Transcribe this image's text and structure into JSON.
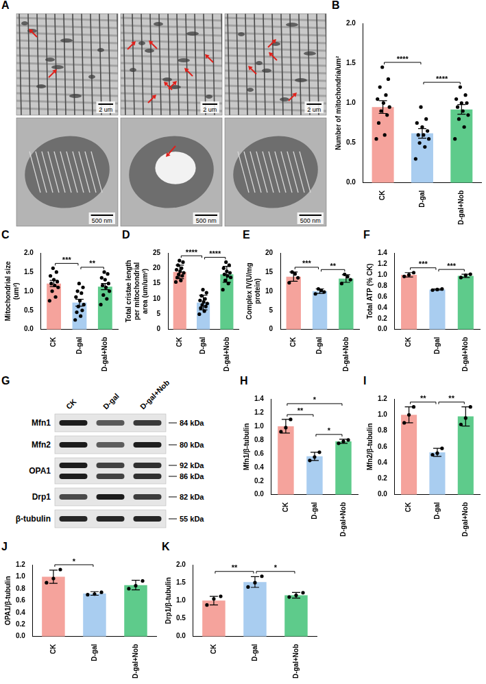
{
  "micrographs": {
    "panel": "A",
    "images": [
      {
        "scale_bar": "2 um"
      },
      {
        "scale_bar": "2 um"
      },
      {
        "scale_bar": "2 um"
      },
      {
        "scale_bar": "500 nm"
      },
      {
        "scale_bar": "500 nm"
      },
      {
        "scale_bar": "500 nm"
      }
    ]
  },
  "western_blot": {
    "panel": "G",
    "lanes": [
      "CK",
      "D-gal",
      "D-gal+Nob"
    ],
    "rows": [
      {
        "protein": "Mfn1",
        "sizes": [
          "84 kDa"
        ]
      },
      {
        "protein": "Mfn2",
        "sizes": [
          "80 kDa"
        ]
      },
      {
        "protein": "OPA1",
        "sizes": [
          "92 kDa",
          "86 kDa"
        ]
      },
      {
        "protein": "Drp1",
        "sizes": [
          "82 kDa"
        ]
      },
      {
        "protein": "β-tubulin",
        "sizes": [
          "55 kDa"
        ]
      }
    ]
  },
  "chart_data": [
    {
      "panel": "B",
      "type": "bar",
      "y_label": "Number of mitochondria/um²",
      "categories": [
        "CK",
        "D-gal",
        "D-gal+Nob"
      ],
      "values": [
        0.95,
        0.62,
        0.92
      ],
      "errors": [
        0.08,
        0.06,
        0.06
      ],
      "points": [
        [
          0.55,
          0.6,
          0.75,
          0.85,
          0.9,
          0.95,
          1.0,
          1.05,
          1.1,
          1.2,
          1.3,
          1.45
        ],
        [
          0.3,
          0.45,
          0.5,
          0.55,
          0.6,
          0.6,
          0.65,
          0.7,
          0.75,
          0.8,
          0.95
        ],
        [
          0.55,
          0.7,
          0.8,
          0.85,
          0.9,
          0.95,
          1.0,
          1.0,
          1.05,
          1.1,
          1.2
        ]
      ],
      "colors": [
        "#f5a39c",
        "#a9cdf0",
        "#5ecb8b"
      ],
      "ylim": [
        0,
        2.0
      ],
      "yticks": [
        {
          "value": 0,
          "label": "0.0"
        },
        0.5,
        {
          "value": 1,
          "label": "1.0"
        },
        1.5,
        {
          "value": 2,
          "label": "2.0"
        }
      ],
      "grid": false,
      "significance": [
        {
          "groups": [
            "CK",
            "D-gal"
          ],
          "label": "****"
        },
        {
          "groups": [
            "D-gal",
            "D-gal+Nob"
          ],
          "label": "****"
        }
      ]
    },
    {
      "panel": "C",
      "type": "bar",
      "y_label": "Mitochondrial size (um²)",
      "categories": [
        "CK",
        "D-gal",
        "D-gal+Nob"
      ],
      "values": [
        1.2,
        0.7,
        1.12
      ],
      "errors": [
        0.08,
        0.09,
        0.08
      ],
      "points": [
        [
          0.75,
          0.85,
          1.0,
          1.1,
          1.15,
          1.2,
          1.25,
          1.3,
          1.4,
          1.5,
          1.6
        ],
        [
          0.25,
          0.35,
          0.45,
          0.5,
          0.6,
          0.65,
          0.75,
          0.85,
          0.95,
          1.0,
          1.1,
          1.2
        ],
        [
          0.65,
          0.8,
          0.9,
          1.0,
          1.1,
          1.15,
          1.2,
          1.3,
          1.35,
          1.45,
          1.5
        ]
      ],
      "colors": [
        "#f5a39c",
        "#a9cdf0",
        "#5ecb8b"
      ],
      "ylim": [
        0,
        2.0
      ],
      "yticks": [
        {
          "value": 0,
          "label": "0.0"
        },
        0.5,
        {
          "value": 1,
          "label": "1.0"
        },
        1.5,
        {
          "value": 2,
          "label": "2.0"
        }
      ],
      "grid": false,
      "significance": [
        {
          "groups": [
            "CK",
            "D-gal"
          ],
          "label": "***"
        },
        {
          "groups": [
            "D-gal",
            "D-gal+Nob"
          ],
          "label": "**"
        }
      ]
    },
    {
      "panel": "D",
      "type": "bar",
      "y_label": "Total cristae length per mitochondrial area (um/um²)",
      "categories": [
        "CK",
        "D-gal",
        "D-gal+Nob"
      ],
      "values": [
        18.8,
        8.8,
        18.0
      ],
      "errors": [
        2.2,
        2.4,
        2.6
      ],
      "points": [
        [
          15.5,
          16,
          17,
          17.5,
          18,
          18.5,
          19,
          19.5,
          20,
          21,
          22,
          22.5
        ],
        [
          5,
          6,
          7,
          7.5,
          8,
          8.5,
          9,
          9.5,
          10,
          11,
          12,
          13
        ],
        [
          13,
          15,
          16,
          17,
          17.5,
          18,
          18.5,
          19,
          20,
          21,
          22
        ]
      ],
      "colors": [
        "#f5a39c",
        "#a9cdf0",
        "#5ecb8b"
      ],
      "ylim": [
        0,
        25
      ],
      "yticks": [
        0,
        5,
        10,
        15,
        20,
        25
      ],
      "grid": false,
      "significance": [
        {
          "groups": [
            "CK",
            "D-gal"
          ],
          "label": "****"
        },
        {
          "groups": [
            "D-gal",
            "D-gal+Nob"
          ],
          "label": "****"
        }
      ]
    },
    {
      "panel": "E",
      "type": "bar",
      "y_label": "Complex IV(U/mg protein)",
      "categories": [
        "CK",
        "D-gal",
        "D-gal+Nob"
      ],
      "values": [
        13.8,
        10.0,
        13.3
      ],
      "errors": [
        1.2,
        0.6,
        1.0
      ],
      "points": [
        [
          12.2,
          13.5,
          14.5,
          15.0
        ],
        [
          9.3,
          9.8,
          10.2,
          10.6
        ],
        [
          12.0,
          13.0,
          13.8,
          14.4
        ]
      ],
      "colors": [
        "#f5a39c",
        "#a9cdf0",
        "#5ecb8b"
      ],
      "ylim": [
        0,
        20
      ],
      "yticks": [
        0,
        5,
        10,
        15,
        20
      ],
      "grid": false,
      "significance": [
        {
          "groups": [
            "CK",
            "D-gal"
          ],
          "label": "***"
        },
        {
          "groups": [
            "D-gal",
            "D-gal+Nob"
          ],
          "label": "**"
        }
      ]
    },
    {
      "panel": "F",
      "type": "bar",
      "y_label": "Total ATP (% CK)",
      "categories": [
        "CK",
        "D-gal",
        "D-gal+Nob"
      ],
      "values": [
        1.0,
        0.73,
        0.98
      ],
      "errors": [
        0.04,
        0.01,
        0.03
      ],
      "points": [
        [
          0.97,
          1.0,
          1.04
        ],
        [
          0.72,
          0.73,
          0.74
        ],
        [
          0.95,
          0.99,
          1.01
        ]
      ],
      "colors": [
        "#f5a39c",
        "#a9cdf0",
        "#5ecb8b"
      ],
      "ylim": [
        0,
        1.4
      ],
      "yticks": [
        {
          "value": 0,
          "label": "0.0"
        },
        0.2,
        0.4,
        0.6,
        0.8,
        {
          "value": 1,
          "label": "1.0"
        },
        1.2,
        1.4
      ],
      "grid": false,
      "significance": [
        {
          "groups": [
            "CK",
            "D-gal"
          ],
          "label": "***"
        },
        {
          "groups": [
            "D-gal",
            "D-gal+Nob"
          ],
          "label": "***"
        }
      ]
    },
    {
      "panel": "H",
      "type": "bar",
      "y_label": "Mfn1/β-tubulin",
      "categories": [
        "CK",
        "D-gal",
        "D-gal+Nob"
      ],
      "values": [
        1.0,
        0.56,
        0.78
      ],
      "errors": [
        0.1,
        0.06,
        0.03
      ],
      "points": [
        [
          0.92,
          0.98,
          1.1
        ],
        [
          0.5,
          0.55,
          0.62
        ],
        [
          0.75,
          0.78,
          0.8
        ]
      ],
      "colors": [
        "#f5a39c",
        "#a9cdf0",
        "#5ecb8b"
      ],
      "ylim": [
        0,
        1.4
      ],
      "yticks": [
        {
          "value": 0,
          "label": "0.0"
        },
        0.2,
        0.4,
        0.6,
        0.8,
        {
          "value": 1,
          "label": "1.0"
        },
        1.2,
        1.4
      ],
      "grid": false,
      "significance": [
        {
          "groups": [
            "CK",
            "D-gal"
          ],
          "label": "**"
        },
        {
          "groups": [
            "D-gal",
            "D-gal+Nob"
          ],
          "label": "*"
        },
        {
          "groups": [
            "CK",
            "D-gal+Nob"
          ],
          "label": "*"
        }
      ]
    },
    {
      "panel": "I",
      "type": "bar",
      "y_label": "Mfn2/β-tubulin",
      "categories": [
        "CK",
        "D-gal",
        "D-gal+Nob"
      ],
      "values": [
        1.0,
        0.53,
        0.98
      ],
      "errors": [
        0.1,
        0.05,
        0.12
      ],
      "points": [
        [
          0.9,
          1.0,
          1.1
        ],
        [
          0.5,
          0.52,
          0.58
        ],
        [
          0.88,
          0.96,
          1.1
        ]
      ],
      "colors": [
        "#f5a39c",
        "#a9cdf0",
        "#5ecb8b"
      ],
      "ylim": [
        0,
        1.2
      ],
      "yticks": [
        {
          "value": 0,
          "label": "0.0"
        },
        0.2,
        0.4,
        0.6,
        0.8,
        {
          "value": 1,
          "label": "1.0"
        },
        1.2
      ],
      "grid": false,
      "significance": [
        {
          "groups": [
            "CK",
            "D-gal"
          ],
          "label": "**"
        },
        {
          "groups": [
            "D-gal",
            "D-gal+Nob"
          ],
          "label": "**"
        }
      ]
    },
    {
      "panel": "J",
      "type": "bar",
      "y_label": "OPA1/β-tubulin",
      "categories": [
        "CK",
        "D-gal",
        "D-gal+Nob"
      ],
      "values": [
        1.0,
        0.72,
        0.86
      ],
      "errors": [
        0.11,
        0.03,
        0.08
      ],
      "points": [
        [
          0.9,
          0.97,
          1.12
        ],
        [
          0.7,
          0.71,
          0.74
        ],
        [
          0.8,
          0.85,
          0.93
        ]
      ],
      "colors": [
        "#f5a39c",
        "#a9cdf0",
        "#5ecb8b"
      ],
      "ylim": [
        0,
        1.2
      ],
      "yticks": [
        {
          "value": 0,
          "label": "0.0"
        },
        0.2,
        0.4,
        0.6,
        0.8,
        {
          "value": 1,
          "label": "1.0"
        },
        1.2
      ],
      "grid": false,
      "significance": [
        {
          "groups": [
            "CK",
            "D-gal"
          ],
          "label": "*"
        }
      ]
    },
    {
      "panel": "K",
      "type": "bar",
      "y_label": "Drp1/β-tubulin",
      "categories": [
        "CK",
        "D-gal",
        "D-gal+Nob"
      ],
      "values": [
        1.0,
        1.52,
        1.15
      ],
      "errors": [
        0.12,
        0.15,
        0.08
      ],
      "points": [
        [
          0.88,
          1.05,
          1.12
        ],
        [
          1.38,
          1.5,
          1.68
        ],
        [
          1.1,
          1.15,
          1.22
        ]
      ],
      "colors": [
        "#f5a39c",
        "#a9cdf0",
        "#5ecb8b"
      ],
      "ylim": [
        0,
        2.0
      ],
      "yticks": [
        {
          "value": 0,
          "label": "0.0"
        },
        0.5,
        {
          "value": 1,
          "label": "1.0"
        },
        1.5,
        {
          "value": 2,
          "label": "2.0"
        }
      ],
      "grid": false,
      "significance": [
        {
          "groups": [
            "CK",
            "D-gal"
          ],
          "label": "**"
        },
        {
          "groups": [
            "D-gal",
            "D-gal+Nob"
          ],
          "label": "*"
        }
      ]
    }
  ]
}
